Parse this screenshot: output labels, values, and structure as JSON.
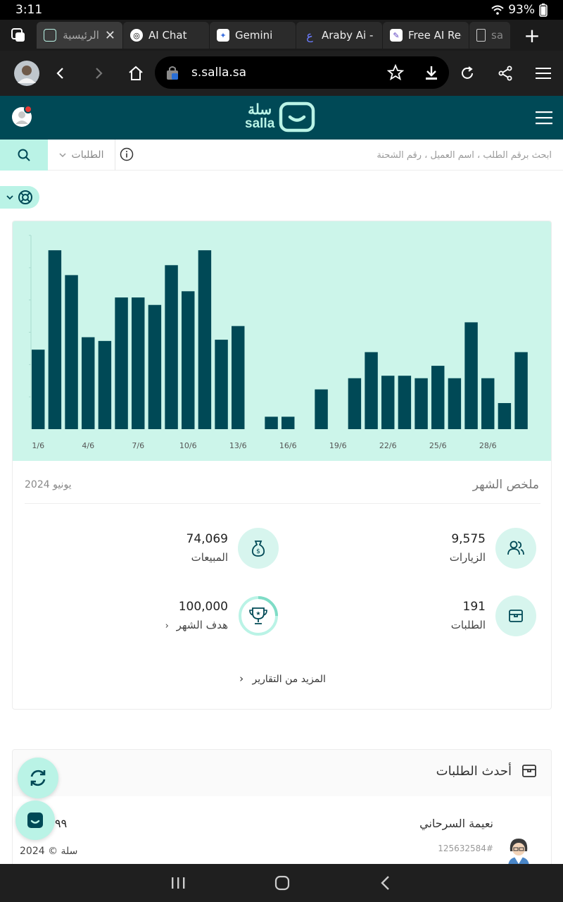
{
  "status_bar": {
    "time": "3:11",
    "battery": "93%"
  },
  "tabs": [
    {
      "label": "الرئيسية",
      "icon": "salla-icon",
      "active": true
    },
    {
      "label": "AI Chat",
      "icon": "ai-chat-icon",
      "active": false
    },
    {
      "label": "Gemini",
      "icon": "gemini-icon",
      "active": false
    },
    {
      "label": "Araby Ai - l",
      "icon": "araby-icon",
      "active": false
    },
    {
      "label": "Free AI Rec",
      "icon": "free-ai-icon",
      "active": false
    },
    {
      "label": "sal",
      "icon": "page-icon",
      "active": false
    }
  ],
  "address_bar": {
    "url": "s.salla.sa"
  },
  "header": {
    "logo_ar": "سلة",
    "logo_en": "salla"
  },
  "search": {
    "placeholder": "ابحث برقم الطلب ، اسم العميل ، رقم الشحنة",
    "filter_label": "الطلبات"
  },
  "chart_data": {
    "type": "bar",
    "categories": [
      "1/6",
      "2/6",
      "3/6",
      "4/6",
      "5/6",
      "6/6",
      "7/6",
      "8/6",
      "9/6",
      "10/6",
      "11/6",
      "12/6",
      "13/6",
      "14/6",
      "15/6",
      "16/6",
      "17/6",
      "18/6",
      "19/6",
      "20/6",
      "21/6",
      "22/6",
      "23/6",
      "24/6",
      "25/6",
      "26/6",
      "27/6",
      "28/6",
      "29/6",
      "30/6"
    ],
    "tick_labels": [
      "1/6",
      "4/6",
      "7/6",
      "10/6",
      "13/6",
      "16/6",
      "19/6",
      "22/6",
      "25/6",
      "28/6"
    ],
    "values": [
      3.2,
      7.2,
      6.2,
      3.7,
      3.55,
      5.3,
      5.3,
      5.0,
      6.6,
      5.55,
      7.2,
      3.6,
      4.15,
      0,
      0.5,
      0.5,
      0,
      1.6,
      0,
      2.05,
      3.1,
      2.15,
      2.15,
      2.05,
      2.55,
      2.05,
      4.3,
      2.05,
      1.05,
      3.1
    ],
    "ylim": [
      0,
      7.8
    ],
    "grid": false,
    "bar_color": "#004956",
    "background": "#ccf5ea"
  },
  "summary": {
    "title": "ملخص الشهر",
    "month": "يونيو 2024",
    "stats": {
      "visits": {
        "value": "9,575",
        "label": "الزيارات",
        "icon": "users-icon"
      },
      "sales": {
        "value": "74,069",
        "label": "المبيعات",
        "icon": "money-bag-icon"
      },
      "orders": {
        "value": "191",
        "label": "الطلبات",
        "icon": "box-icon"
      },
      "goal": {
        "value": "100,000",
        "label": "هدف الشهر",
        "icon": "trophy-icon"
      }
    },
    "more_reports": "المزيد من التقارير"
  },
  "latest_orders": {
    "title": "أحدث الطلبات",
    "customer_name": "نعيمة السرحاني",
    "order_number": "125632584#",
    "amount_partial": "٩٩"
  },
  "footer": {
    "copyright": "سلة © 2024"
  },
  "colors": {
    "brand_dark": "#004956",
    "brand_mint": "#baf3e6",
    "chart_bg": "#ccf5ea"
  }
}
